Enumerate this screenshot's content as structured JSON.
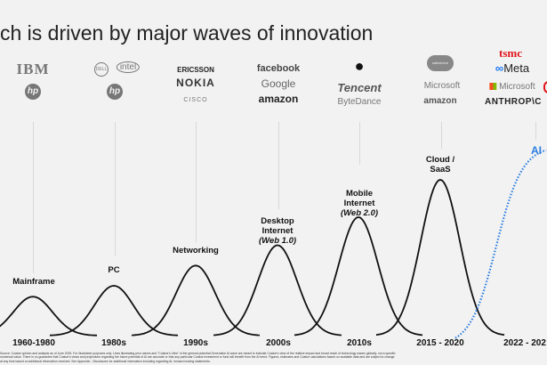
{
  "title": "ch is driven by major waves of innovation",
  "logos": [
    [
      "IBM",
      "hp"
    ],
    [
      "DELL",
      "intel",
      "hp"
    ],
    [
      "ERICSSON",
      "NOKIA",
      "cisco"
    ],
    [
      "facebook",
      "Google",
      "amazon"
    ],
    [
      "Apple",
      "Tencent",
      "ByteDance"
    ],
    [
      "salesforce",
      "Microsoft",
      "amazon"
    ],
    [
      "tsmc",
      "Meta",
      "Microsoft",
      "ANTHROP\\C"
    ]
  ],
  "chart_data": {
    "type": "line",
    "title": "",
    "waves": [
      {
        "label": "Mainframe",
        "period": "1960-1980",
        "relative_peak": 0.25
      },
      {
        "label": "PC",
        "period": "1980s",
        "relative_peak": 0.32
      },
      {
        "label": "Networking",
        "period": "1990s",
        "relative_peak": 0.45
      },
      {
        "label": "Desktop Internet",
        "sublabel": "(Web 1.0)",
        "period": "2000s",
        "relative_peak": 0.58
      },
      {
        "label": "Mobile Internet",
        "sublabel": "(Web 2.0)",
        "period": "2010s",
        "relative_peak": 0.76
      },
      {
        "label": "Cloud / SaaS",
        "period": "2015 - 2020",
        "relative_peak": 1.0
      },
      {
        "label": "AI",
        "period": "2022 - 202",
        "style": "dotted",
        "color": "#2a7de1"
      }
    ]
  },
  "footer": [
    "Source: Coatue opinion and analysis as of June 2025. For illustrative purposes only. Lines illustrating prior waves and \"Coatue's View\" of the general potential Generative AI wave are meant to indicate Coatue's view of the relative impact and broad reach of technology waves globally, not a specific",
    "numerical value. There is no guarantee that Coatue's views and projections regarding the future potential of AI are accurate or that any particular Coatue investment or fund will benefit from the AI trend. Figures, estimates and Coatue calculations based on available data and are subject to change",
    "at any time based on additional information received. See Appendix - Disclosures for additional information including regarding AI, forward looking statements."
  ]
}
